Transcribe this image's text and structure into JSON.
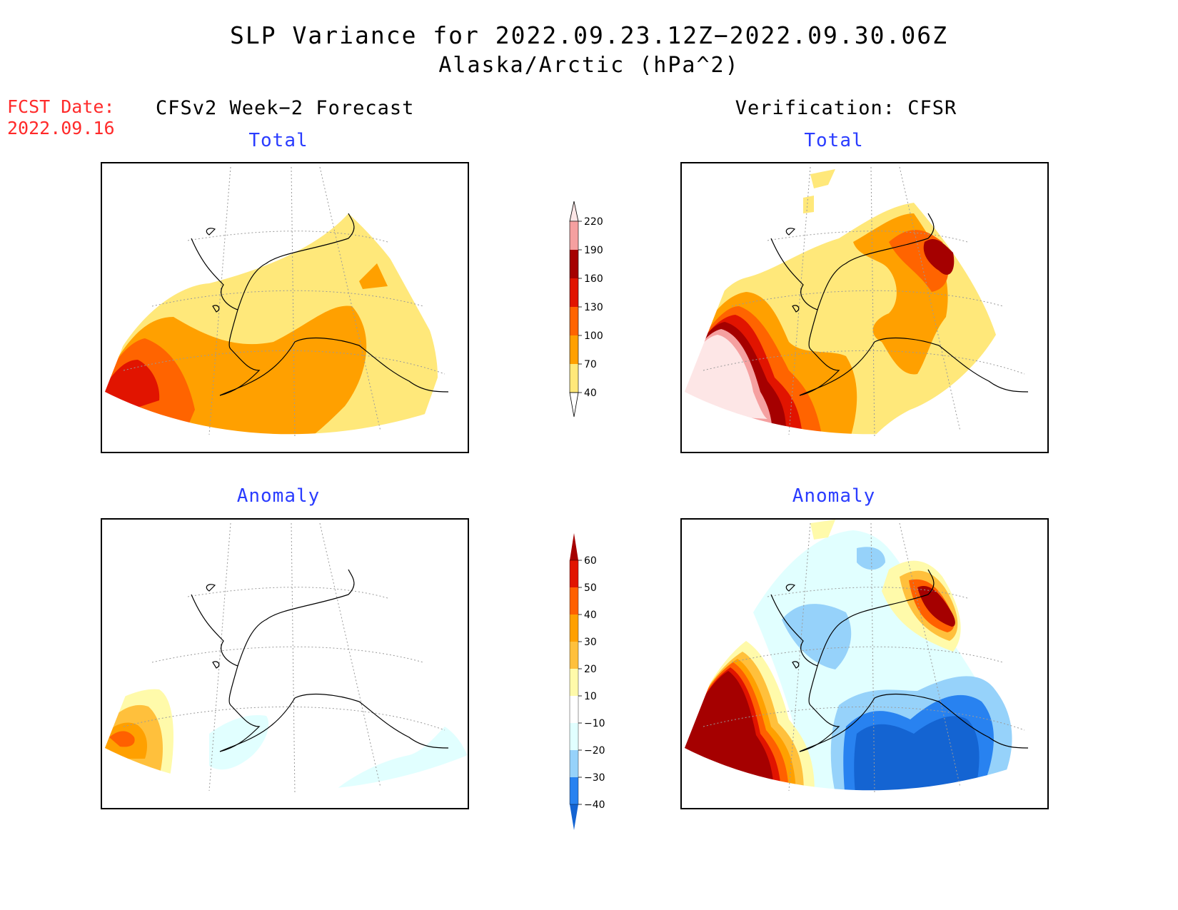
{
  "title": "SLP Variance for 2022.09.23.12Z−2022.09.30.06Z",
  "subtitle": "Alaska/Arctic (hPa^2)",
  "fcst_date": {
    "label": "FCST Date:",
    "value": "2022.09.16"
  },
  "columns": {
    "forecast": "CFSv2 Week−2 Forecast",
    "verification": "Verification: CFSR"
  },
  "panel_titles": {
    "fc_total": "Total",
    "ver_total": "Total",
    "fc_anom": "Anomaly",
    "ver_anom": "Anomaly"
  },
  "colors": {
    "coast": "#000000",
    "grid": "#9a9a9a",
    "title_blue": "#2a3cff",
    "fcst_red": "#ff2a2a"
  },
  "total_colorbar": {
    "levels": [
      "40",
      "70",
      "100",
      "130",
      "160",
      "190",
      "220"
    ],
    "colors": [
      "#ffe87a",
      "#ffa000",
      "#ff6400",
      "#e11400",
      "#a50000",
      "#f5a0a0",
      "#fde6e6"
    ]
  },
  "anomaly_colorbar": {
    "levels": [
      "−40",
      "−30",
      "−20",
      "−10",
      "10",
      "20",
      "30",
      "40",
      "50",
      "60"
    ],
    "colors": [
      "#1464d2",
      "#2882f0",
      "#96d2fa",
      "#e1ffff",
      "#ffffff",
      "#fffaaa",
      "#ffc03c",
      "#ffa000",
      "#ff6000",
      "#e11400",
      "#a50000"
    ]
  }
}
